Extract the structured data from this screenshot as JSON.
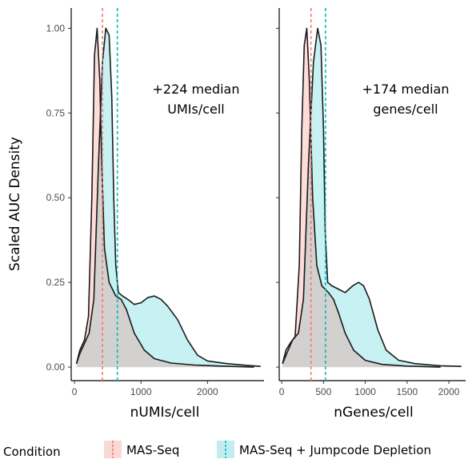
{
  "chart_data": [
    {
      "type": "area",
      "xlabel": "nUMIs/cell",
      "ylabel": "Scaled AUC Density",
      "xlim": [
        -50,
        2850
      ],
      "ylim": [
        -0.04,
        1.06
      ],
      "xticks": [
        0,
        1000,
        2000
      ],
      "xtick_labels": [
        "0",
        "1000",
        "2000"
      ],
      "yticks": [
        0.0,
        0.25,
        0.5,
        0.75,
        1.0
      ],
      "ytick_labels": [
        "0.00",
        "0.25",
        "0.50",
        "0.75",
        "1.00"
      ],
      "annotation": [
        "+224 median",
        "UMIs/cell"
      ],
      "series": [
        {
          "name": "MAS-Seq",
          "color": "#F8766D",
          "median": 420,
          "points": [
            [
              30,
              0.01
            ],
            [
              80,
              0.05
            ],
            [
              150,
              0.08
            ],
            [
              210,
              0.15
            ],
            [
              260,
              0.5
            ],
            [
              300,
              0.92
            ],
            [
              340,
              1.0
            ],
            [
              380,
              0.85
            ],
            [
              410,
              0.6
            ],
            [
              450,
              0.35
            ],
            [
              520,
              0.25
            ],
            [
              620,
              0.21
            ],
            [
              700,
              0.2
            ],
            [
              780,
              0.17
            ],
            [
              900,
              0.1
            ],
            [
              1050,
              0.05
            ],
            [
              1200,
              0.025
            ],
            [
              1450,
              0.012
            ],
            [
              1800,
              0.006
            ],
            [
              2200,
              0.003
            ],
            [
              2700,
              0.0
            ]
          ]
        },
        {
          "name": "MAS-Seq + Jumpcode Depletion",
          "color": "#00BFC4",
          "median": 644,
          "points": [
            [
              30,
              0.01
            ],
            [
              80,
              0.04
            ],
            [
              150,
              0.07
            ],
            [
              220,
              0.1
            ],
            [
              290,
              0.2
            ],
            [
              360,
              0.6
            ],
            [
              420,
              0.9
            ],
            [
              470,
              1.0
            ],
            [
              520,
              0.98
            ],
            [
              560,
              0.8
            ],
            [
              590,
              0.5
            ],
            [
              620,
              0.3
            ],
            [
              660,
              0.22
            ],
            [
              720,
              0.21
            ],
            [
              800,
              0.2
            ],
            [
              900,
              0.185
            ],
            [
              1000,
              0.19
            ],
            [
              1100,
              0.205
            ],
            [
              1200,
              0.21
            ],
            [
              1300,
              0.2
            ],
            [
              1400,
              0.18
            ],
            [
              1550,
              0.14
            ],
            [
              1700,
              0.08
            ],
            [
              1850,
              0.035
            ],
            [
              2000,
              0.018
            ],
            [
              2300,
              0.01
            ],
            [
              2600,
              0.005
            ],
            [
              2800,
              0.002
            ]
          ]
        }
      ]
    },
    {
      "type": "area",
      "xlabel": "nGenes/cell",
      "ylabel": "Scaled AUC Density",
      "xlim": [
        -30,
        2200
      ],
      "ylim": [
        -0.04,
        1.06
      ],
      "xticks": [
        0,
        500,
        1000,
        1500,
        2000
      ],
      "xtick_labels": [
        "0",
        "500",
        "1000",
        "1500",
        "2000"
      ],
      "yticks": [
        0.0,
        0.25,
        0.5,
        0.75,
        1.0
      ],
      "annotation": [
        "+174 median",
        "genes/cell"
      ],
      "series": [
        {
          "name": "MAS-Seq",
          "color": "#F8766D",
          "median": 350,
          "points": [
            [
              10,
              0.01
            ],
            [
              50,
              0.05
            ],
            [
              100,
              0.07
            ],
            [
              160,
              0.09
            ],
            [
              210,
              0.3
            ],
            [
              240,
              0.7
            ],
            [
              270,
              0.95
            ],
            [
              300,
              1.0
            ],
            [
              330,
              0.85
            ],
            [
              370,
              0.5
            ],
            [
              420,
              0.3
            ],
            [
              480,
              0.24
            ],
            [
              560,
              0.22
            ],
            [
              620,
              0.2
            ],
            [
              680,
              0.16
            ],
            [
              760,
              0.1
            ],
            [
              860,
              0.05
            ],
            [
              1000,
              0.02
            ],
            [
              1200,
              0.008
            ],
            [
              1500,
              0.003
            ],
            [
              1900,
              0.0
            ]
          ]
        },
        {
          "name": "MAS-Seq + Jumpcode Depletion",
          "color": "#00BFC4",
          "median": 524,
          "points": [
            [
              10,
              0.01
            ],
            [
              60,
              0.04
            ],
            [
              130,
              0.08
            ],
            [
              200,
              0.1
            ],
            [
              260,
              0.2
            ],
            [
              320,
              0.6
            ],
            [
              380,
              0.9
            ],
            [
              430,
              1.0
            ],
            [
              470,
              0.95
            ],
            [
              500,
              0.7
            ],
            [
              520,
              0.4
            ],
            [
              550,
              0.25
            ],
            [
              600,
              0.24
            ],
            [
              680,
              0.23
            ],
            [
              760,
              0.22
            ],
            [
              850,
              0.24
            ],
            [
              920,
              0.25
            ],
            [
              980,
              0.24
            ],
            [
              1050,
              0.2
            ],
            [
              1150,
              0.11
            ],
            [
              1250,
              0.05
            ],
            [
              1400,
              0.02
            ],
            [
              1600,
              0.01
            ],
            [
              1900,
              0.004
            ],
            [
              2150,
              0.002
            ]
          ]
        }
      ]
    }
  ],
  "legend": {
    "title": "Condition",
    "items": [
      {
        "label": "MAS-Seq",
        "color": "#F8766D",
        "fill": "#F8D9D4"
      },
      {
        "label": "MAS-Seq + Jumpcode Depletion",
        "color": "#00BFC4",
        "fill": "#C4ECEE"
      }
    ]
  }
}
